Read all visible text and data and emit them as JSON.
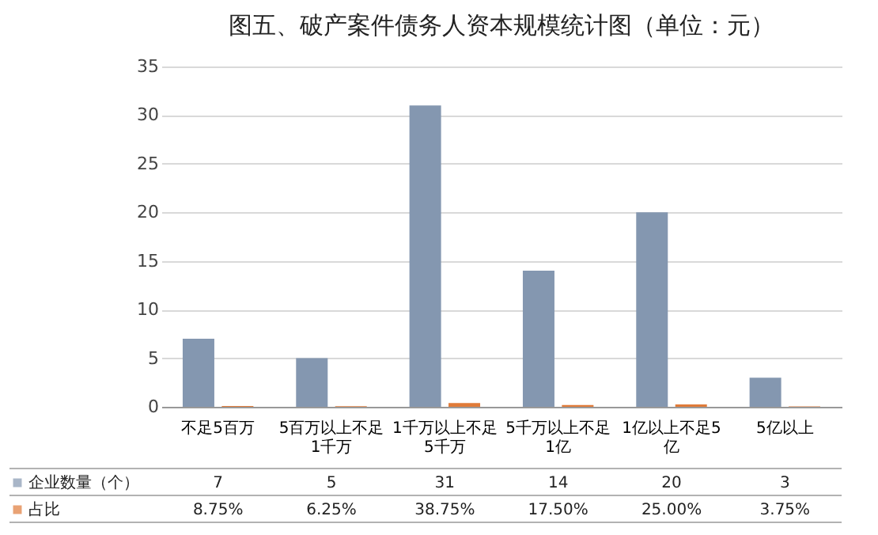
{
  "chart_data": {
    "type": "bar",
    "title": "图五、破产案件债务人资本规模统计图（单位：元）",
    "categories": [
      "不足5百万",
      "5百万以上不足1千万",
      "1千万以上不足5千万",
      "5千万以上不足1亿",
      "1亿以上不足5亿",
      "5亿以上"
    ],
    "series": [
      {
        "name": "企业数量（个）",
        "color": "#8497b0",
        "values": [
          7,
          5,
          31,
          14,
          20,
          3
        ],
        "value_labels": [
          "7",
          "5",
          "31",
          "14",
          "20",
          "3"
        ]
      },
      {
        "name": "占比",
        "color": "#e07b39",
        "values": [
          0.0875,
          0.0625,
          0.3875,
          0.175,
          0.25,
          0.0375
        ],
        "value_labels": [
          "8.75%",
          "6.25%",
          "38.75%",
          "17.50%",
          "25.00%",
          "3.75%"
        ]
      }
    ],
    "ylim": [
      0,
      35
    ],
    "yticks": [
      0,
      5,
      10,
      15,
      20,
      25,
      30,
      35
    ],
    "grid": "y",
    "legend": "bottom"
  }
}
